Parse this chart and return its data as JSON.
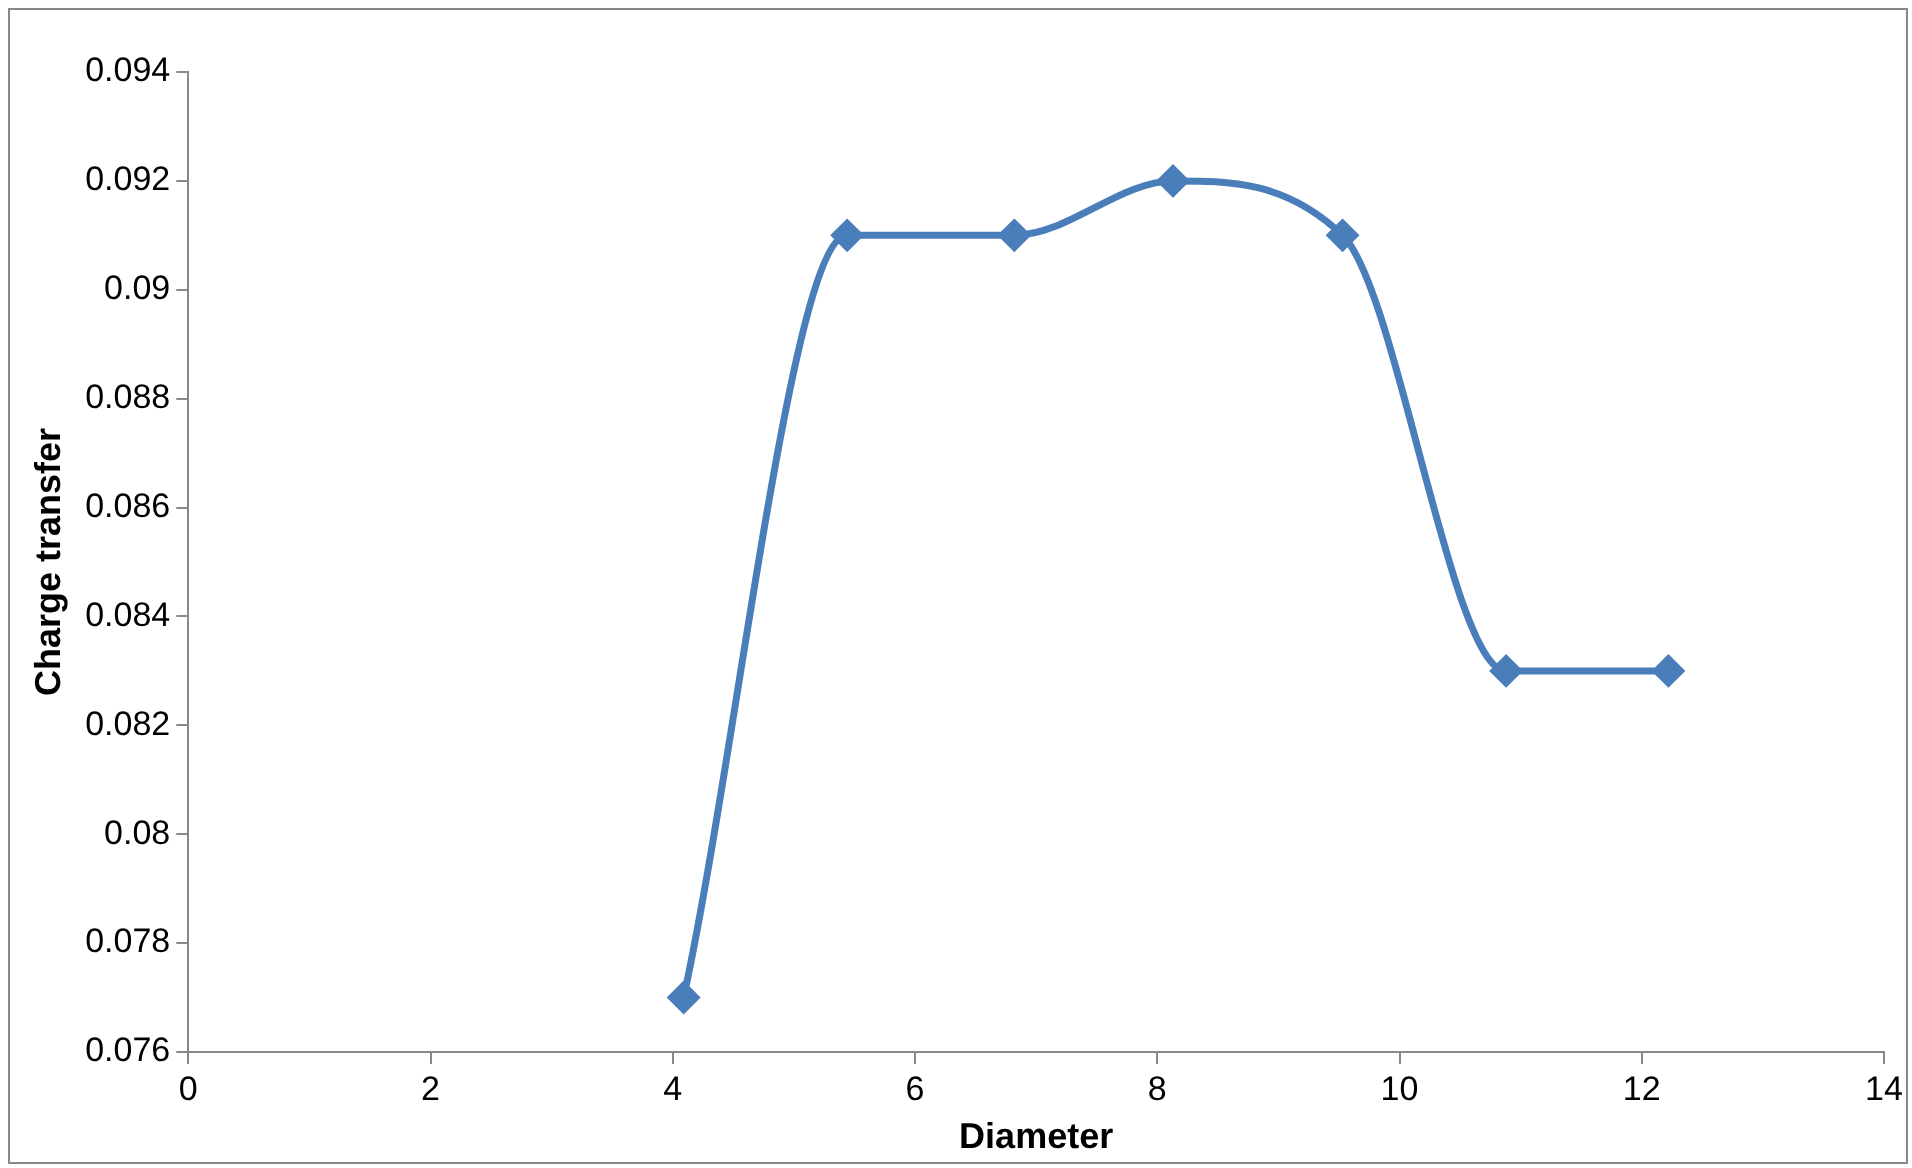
{
  "chart_data": {
    "type": "line",
    "xlabel": "Diameter",
    "ylabel": "Charge transfer",
    "series": [
      {
        "color": "#4a7ebb",
        "x": [
          4.09,
          5.44,
          6.82,
          8.13,
          9.53,
          10.88,
          12.22
        ],
        "values": [
          0.077,
          0.091,
          0.091,
          0.092,
          0.091,
          0.083,
          0.083
        ]
      }
    ],
    "xlim": [
      0,
      14
    ],
    "xticks": [
      0,
      2,
      4,
      6,
      8,
      10,
      12,
      14
    ],
    "ylim": [
      0.076,
      0.094
    ],
    "yticks": [
      0.076,
      0.078,
      0.08,
      0.082,
      0.084,
      0.086,
      0.088,
      0.09,
      0.092,
      0.094
    ],
    "grid": false,
    "legend": false,
    "marker": "diamond",
    "line_style": "solid"
  }
}
